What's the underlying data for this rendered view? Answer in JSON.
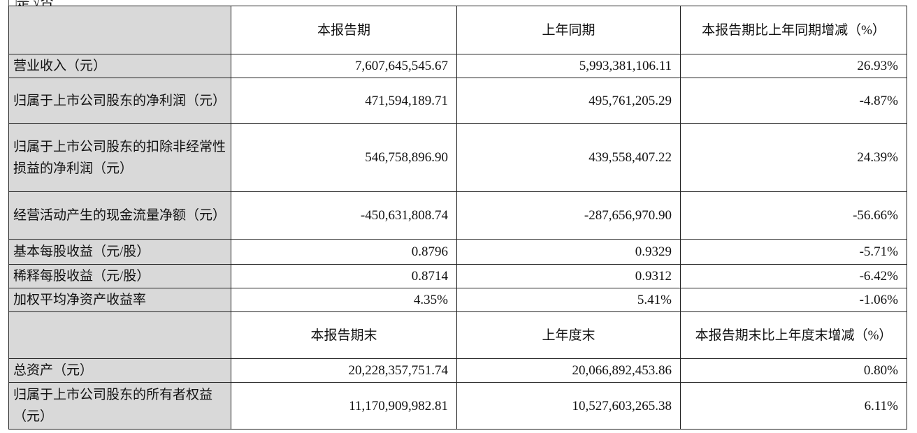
{
  "top_note": "□是 √否",
  "sections": [
    {
      "header": [
        "本报告期",
        "上年同期",
        "本报告期比上年同期增减（%）"
      ],
      "rows": [
        [
          "营业收入（元）",
          "7,607,645,545.67",
          "5,993,381,106.11",
          "26.93%"
        ],
        [
          "归属于上市公司股东的净利润（元）",
          "471,594,189.71",
          "495,761,205.29",
          "-4.87%"
        ],
        [
          "归属于上市公司股东的扣除非经常性损益的净利润（元）",
          "546,758,896.90",
          "439,558,407.22",
          "24.39%"
        ],
        [
          "经营活动产生的现金流量净额（元）",
          "-450,631,808.74",
          "-287,656,970.90",
          "-56.66%"
        ],
        [
          "基本每股收益（元/股）",
          "0.8796",
          "0.9329",
          "-5.71%"
        ],
        [
          "稀释每股收益（元/股）",
          "0.8714",
          "0.9312",
          "-6.42%"
        ],
        [
          "加权平均净资产收益率",
          "4.35%",
          "5.41%",
          "-1.06%"
        ]
      ]
    },
    {
      "header": [
        "本报告期末",
        "上年度末",
        "本报告期末比上年度末增减（%）"
      ],
      "rows": [
        [
          "总资产（元）",
          "20,228,357,751.74",
          "20,066,892,453.86",
          "0.80%"
        ],
        [
          "归属于上市公司股东的所有者权益（元）",
          "11,170,909,982.81",
          "10,527,603,265.38",
          "6.11%"
        ]
      ]
    }
  ]
}
